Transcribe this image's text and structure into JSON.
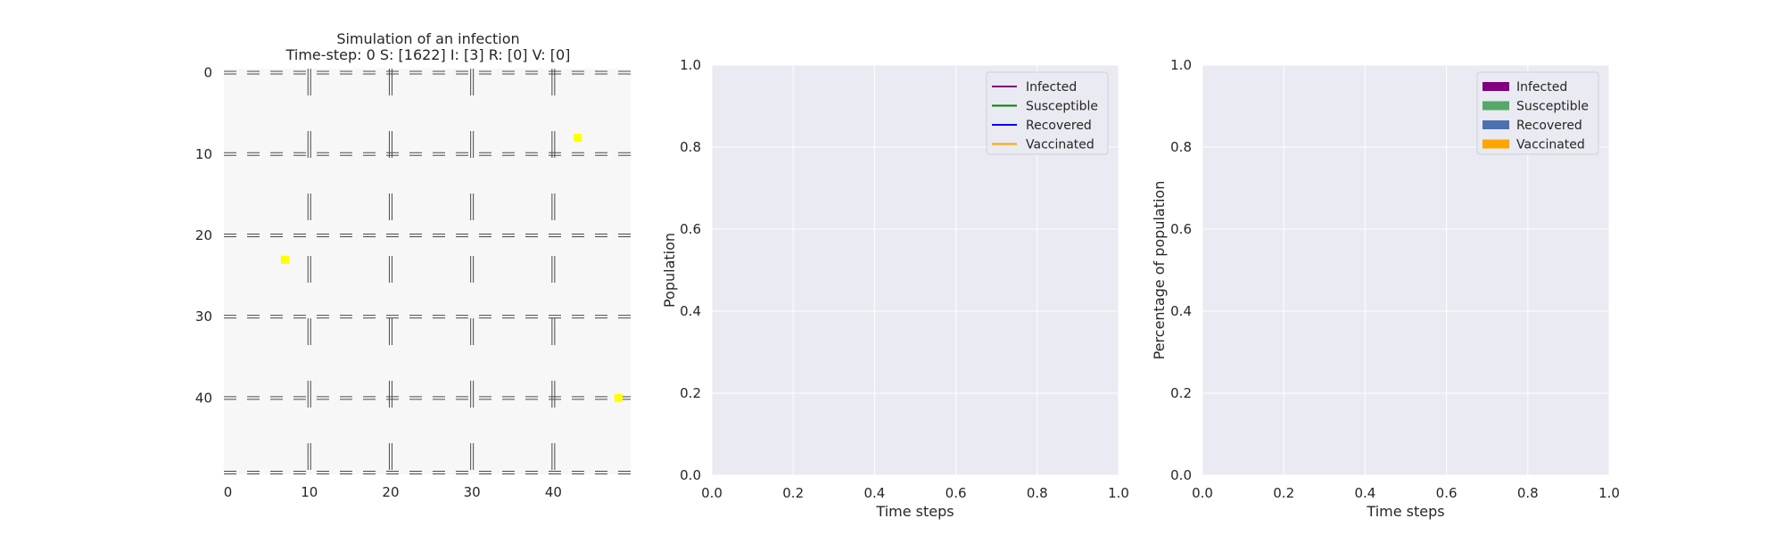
{
  "chart_data": [
    {
      "type": "heatmap",
      "title": "Simulation of an infection",
      "subtitle": "Time-step: 0 S: [1622] I: [3] R: [0] V: [0]",
      "grid_size": [
        50,
        50
      ],
      "x_ticks": [
        0,
        10,
        20,
        30,
        40
      ],
      "y_ticks": [
        0,
        10,
        20,
        30,
        40
      ],
      "infected_cells": [
        [
          43,
          8
        ],
        [
          7,
          23
        ],
        [
          48,
          40
        ]
      ],
      "road_rows": [
        0,
        10,
        20,
        30,
        40,
        50
      ],
      "road_cols": [
        10,
        20,
        30,
        40
      ],
      "colors": {
        "background": "#f7f7f7",
        "road": "#4a4a4a",
        "infected": "#ffff00"
      }
    },
    {
      "type": "line",
      "xlabel": "Time steps",
      "ylabel": "Population",
      "xlim": [
        0.0,
        1.0
      ],
      "ylim": [
        0.0,
        1.0
      ],
      "x_ticks": [
        "0.0",
        "0.2",
        "0.4",
        "0.6",
        "0.8",
        "1.0"
      ],
      "y_ticks": [
        "0.0",
        "0.2",
        "0.4",
        "0.6",
        "0.8",
        "1.0"
      ],
      "grid": true,
      "legend_position": "top-right",
      "series": [
        {
          "name": "Infected",
          "color": "#800080",
          "values": []
        },
        {
          "name": "Susceptible",
          "color": "#008000",
          "values": []
        },
        {
          "name": "Recovered",
          "color": "#0000ff",
          "values": []
        },
        {
          "name": "Vaccinated",
          "color": "#ffa500",
          "values": []
        }
      ]
    },
    {
      "type": "bar",
      "xlabel": "Time steps",
      "ylabel": "Percentage of population",
      "xlim": [
        0.0,
        1.0
      ],
      "ylim": [
        0.0,
        1.0
      ],
      "x_ticks": [
        "0.0",
        "0.2",
        "0.4",
        "0.6",
        "0.8",
        "1.0"
      ],
      "y_ticks": [
        "0.0",
        "0.2",
        "0.4",
        "0.6",
        "0.8",
        "1.0"
      ],
      "grid": true,
      "legend_position": "top-right",
      "series": [
        {
          "name": "Infected",
          "color": "#800080",
          "values": []
        },
        {
          "name": "Susceptible",
          "color": "#55a868",
          "values": []
        },
        {
          "name": "Recovered",
          "color": "#4c72b0",
          "values": []
        },
        {
          "name": "Vaccinated",
          "color": "#ffa500",
          "values": []
        }
      ]
    }
  ]
}
